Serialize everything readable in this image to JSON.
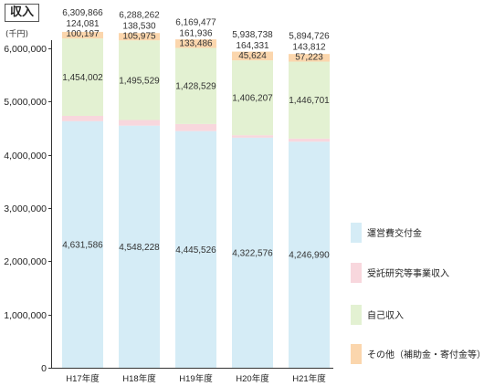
{
  "header": {
    "title": "収入",
    "unit": "(千円)"
  },
  "chart_data": {
    "type": "bar",
    "stacked": true,
    "categories": [
      "H17年度",
      "H18年度",
      "H19年度",
      "H20年度",
      "H21年度"
    ],
    "series": [
      {
        "name": "運営費交付金",
        "color": "#d5ecf6",
        "values": [
          4631586,
          4548228,
          4445526,
          4322576,
          4246990
        ],
        "labels": [
          "4,631,586",
          "4,548,228",
          "4,445,526",
          "4,322,576",
          "4,246,990"
        ]
      },
      {
        "name": "受託研究等事業収入",
        "color": "#f8d7dd",
        "values": [
          100197,
          105975,
          133486,
          45624,
          57223
        ],
        "labels": [
          "100,197",
          "105,975",
          "133,486",
          "45,624",
          "57,223"
        ]
      },
      {
        "name": "自己収入",
        "color": "#e3f1d2",
        "values": [
          1454002,
          1495529,
          1428529,
          1406207,
          1446701
        ],
        "labels": [
          "1,454,002",
          "1,495,529",
          "1,428,529",
          "1,406,207",
          "1,446,701"
        ]
      },
      {
        "name": "その他（補助金・寄付金等）",
        "color": "#fbd6ad",
        "values": [
          124081,
          138530,
          161936,
          164331,
          143812
        ],
        "labels": [
          "124,081",
          "138,530",
          "161,936",
          "164,331",
          "143,812"
        ]
      }
    ],
    "totals": [
      6309866,
      6288262,
      6169477,
      5938738,
      5894726
    ],
    "total_labels": [
      "6,309,866",
      "6,288,262",
      "6,169,477",
      "5,938,738",
      "5,894,726"
    ],
    "y_ticks": [
      0,
      1000000,
      2000000,
      3000000,
      4000000,
      5000000,
      6000000
    ],
    "y_tick_labels": [
      "0",
      "1,000,000",
      "2,000,000",
      "3,000,000",
      "4,000,000",
      "5,000,000",
      "6,000,000"
    ],
    "ylim": [
      0,
      6500000
    ],
    "legend_position": "right",
    "grid": false
  }
}
